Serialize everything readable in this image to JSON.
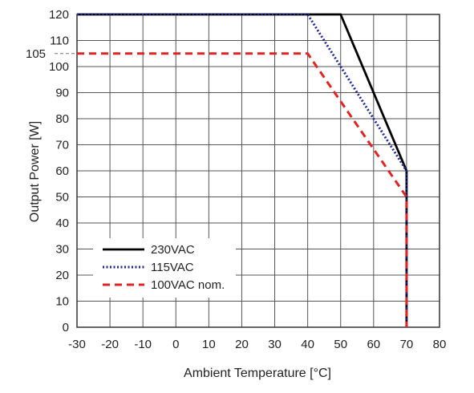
{
  "chart_data": {
    "type": "line",
    "xlabel": "Ambient Temperature [°C]",
    "ylabel": "Output Power [W]",
    "xlim": [
      -30,
      80
    ],
    "ylim": [
      0,
      120
    ],
    "x_ticks": [
      "-30",
      "-20",
      "-10",
      "0",
      "10",
      "20",
      "30",
      "40",
      "50",
      "60",
      "70",
      "80"
    ],
    "y_ticks": [
      "0",
      "10",
      "20",
      "30",
      "40",
      "50",
      "60",
      "70",
      "80",
      "90",
      "100",
      "110",
      "120"
    ],
    "grid": true,
    "legend_position": "bottom-left",
    "reference_line": {
      "label": "105",
      "y": 105
    },
    "series": [
      {
        "name": "230VAC",
        "color": "#000000",
        "style": "solid",
        "x": [
          -30,
          50,
          70,
          70
        ],
        "y": [
          120,
          120,
          60,
          0
        ]
      },
      {
        "name": "115VAC",
        "color": "#1f2a8c",
        "style": "dotted",
        "x": [
          -30,
          40,
          70,
          70
        ],
        "y": [
          120,
          120,
          60,
          0
        ]
      },
      {
        "name": "100VAC nom.",
        "color": "#e02424",
        "style": "dashed",
        "x": [
          -30,
          40,
          70,
          70
        ],
        "y": [
          105,
          105,
          50,
          0
        ]
      }
    ]
  }
}
